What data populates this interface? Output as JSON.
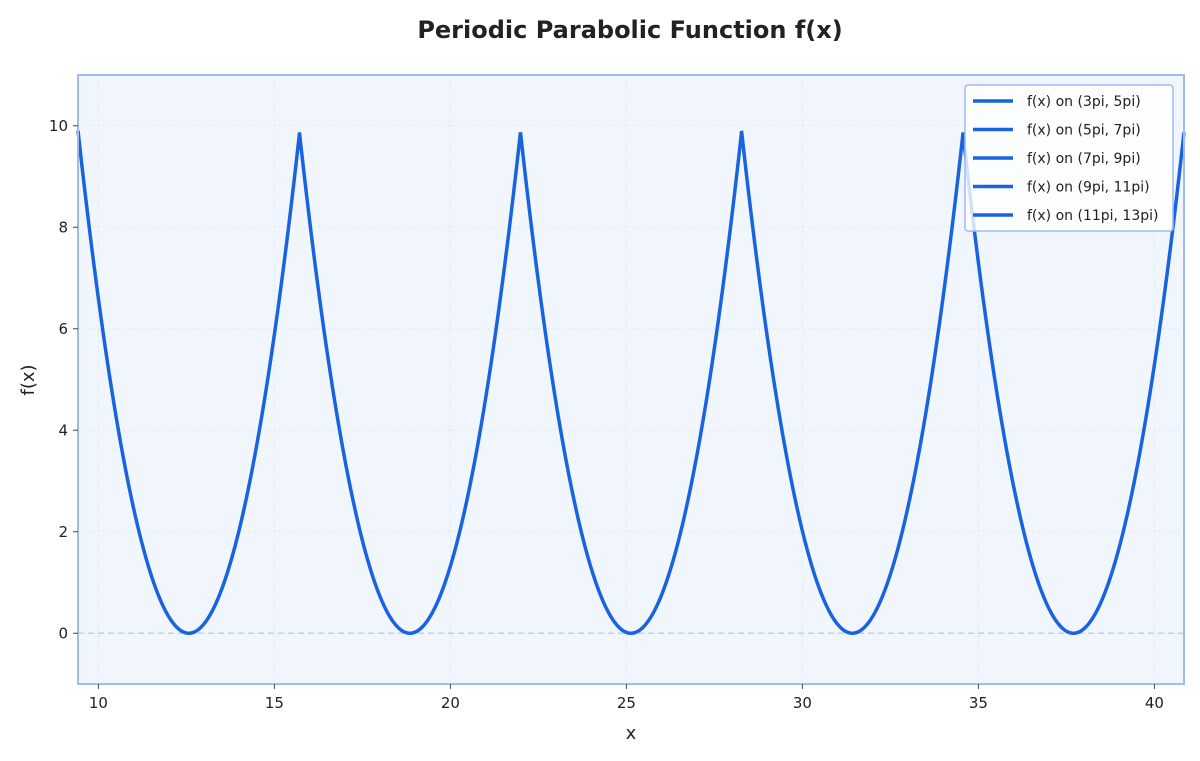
{
  "chart_data": {
    "type": "line",
    "title": "Periodic Parabolic Function f(x)",
    "xlabel": "x",
    "ylabel": "f(x)",
    "xlim": [
      9.42,
      40.84
    ],
    "ylim": [
      -1,
      11
    ],
    "x_ticks": [
      10,
      15,
      20,
      25,
      30,
      35,
      40
    ],
    "y_ticks": [
      0,
      2,
      4,
      6,
      8,
      10
    ],
    "grid": true,
    "legend_position": "top-right",
    "reference_line": {
      "y": 0,
      "style": "dashed"
    },
    "function": "(x - 2k*pi)^2 on ((2k-1)*pi, (2k+1)*pi)",
    "series": [
      {
        "name": "f(x) on (3pi, 5pi)",
        "x_range": [
          9.42,
          15.71
        ],
        "vertex": [
          12.57,
          0
        ],
        "endpoint_value": 9.87
      },
      {
        "name": "f(x) on (5pi, 7pi)",
        "x_range": [
          15.71,
          21.99
        ],
        "vertex": [
          18.85,
          0
        ],
        "endpoint_value": 9.87
      },
      {
        "name": "f(x) on (7pi, 9pi)",
        "x_range": [
          21.99,
          28.27
        ],
        "vertex": [
          25.13,
          0
        ],
        "endpoint_value": 9.87
      },
      {
        "name": "f(x) on (9pi, 11pi)",
        "x_range": [
          28.27,
          34.56
        ],
        "vertex": [
          31.42,
          0
        ],
        "endpoint_value": 9.87
      },
      {
        "name": "f(x) on (11pi, 13pi)",
        "x_range": [
          34.56,
          40.84
        ],
        "vertex": [
          37.7,
          0
        ],
        "endpoint_value": 9.87
      }
    ],
    "colors": {
      "line": "#1a63e0",
      "plot_background": "#f1f6fc",
      "frame": "#9dbcf0",
      "grid": "#dde7f3",
      "zero_line": "#bcd2f2"
    }
  }
}
